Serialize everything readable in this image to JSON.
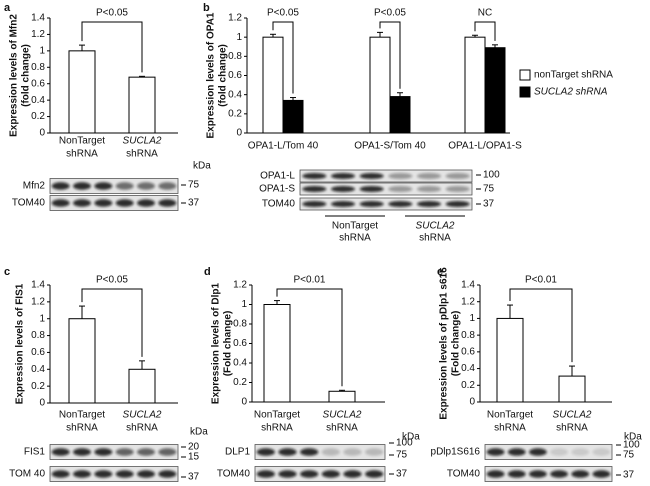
{
  "chart_data": [
    {
      "panel": "a",
      "type": "bar",
      "ylabel": [
        "Expression levels of Mfn2",
        "(fold change)"
      ],
      "ylim": [
        0,
        1.4
      ],
      "yticks": [
        0,
        0.2,
        0.4,
        0.6,
        0.8,
        1,
        1.2,
        1.4
      ],
      "categories": [
        [
          "NonTarget",
          "shRNA"
        ],
        [
          "SUCLA2",
          "shRNA"
        ]
      ],
      "series": [
        {
          "color": "#ffffff",
          "values": [
            1.0,
            0.68
          ],
          "errors": [
            0.07,
            0.01
          ]
        }
      ],
      "annotations": [
        "P<0.05"
      ],
      "blot": {
        "proteins": [
          "Mfn2",
          "TOM40"
        ],
        "kda": "kDa",
        "markers": [
          75,
          37
        ]
      }
    },
    {
      "panel": "b",
      "type": "bar",
      "ylabel": [
        "Expression levels of OPA1",
        "(fold change)"
      ],
      "ylim": [
        0,
        1.2
      ],
      "yticks": [
        0,
        0.2,
        0.4,
        0.6,
        0.8,
        1,
        1.2
      ],
      "categories": [
        "OPA1-L/Tom 40",
        "OPA1-S/Tom 40",
        "OPA1-L/OPA1-S"
      ],
      "series": [
        {
          "name": "nonTarget shRNA",
          "color": "#ffffff",
          "values": [
            1.0,
            1.0,
            1.0
          ],
          "errors": [
            0.03,
            0.05,
            0.02
          ]
        },
        {
          "name": "SUCLA2 shRNA",
          "color": "#000000",
          "values": [
            0.34,
            0.38,
            0.89
          ],
          "errors": [
            0.03,
            0.04,
            0.03
          ]
        }
      ],
      "annotations": [
        "P<0.05",
        "P<0.05",
        "NC"
      ],
      "blot": {
        "proteins": [
          "OPA1-L",
          "OPA1-S",
          "TOM40"
        ],
        "markers": [
          100,
          75,
          37
        ],
        "groups": [
          [
            "NonTarget",
            "shRNA"
          ],
          [
            "SUCLA2",
            "shRNA"
          ]
        ]
      }
    },
    {
      "panel": "c",
      "type": "bar",
      "ylabel": [
        "Expression levels of FIS1"
      ],
      "ylim": [
        0,
        1.4
      ],
      "yticks": [
        0,
        0.2,
        0.4,
        0.6,
        0.8,
        1,
        1.2,
        1.4
      ],
      "categories": [
        [
          "NonTarget",
          "shRNA"
        ],
        [
          "SUCLA2",
          "shRNA"
        ]
      ],
      "series": [
        {
          "color": "#ffffff",
          "values": [
            1.0,
            0.4
          ],
          "errors": [
            0.15,
            0.1
          ]
        }
      ],
      "annotations": [
        "P<0.05"
      ],
      "blot": {
        "proteins": [
          "FIS1",
          "TOM 40"
        ],
        "kda": "kDa",
        "markers": [
          20,
          15,
          37
        ]
      }
    },
    {
      "panel": "d",
      "type": "bar",
      "ylabel": [
        "Expression levels of Dlp1",
        "(Fold change)"
      ],
      "ylim": [
        0,
        1.2
      ],
      "yticks": [
        0,
        0.2,
        0.4,
        0.6,
        0.8,
        1,
        1.2
      ],
      "categories": [
        [
          "NonTarget",
          "shRNA"
        ],
        [
          "SUCLA2",
          "shRNA"
        ]
      ],
      "series": [
        {
          "color": "#ffffff",
          "values": [
            1.0,
            0.11
          ],
          "errors": [
            0.04,
            0.01
          ]
        }
      ],
      "annotations": [
        "P<0.01"
      ],
      "blot": {
        "proteins": [
          "DLP1",
          "TOM40"
        ],
        "kda": "kDa",
        "markers": [
          100,
          75,
          37
        ]
      }
    },
    {
      "panel": "e",
      "type": "bar",
      "ylabel": [
        "Expression levels of pDlp1 s616",
        "(Fold change)"
      ],
      "ylim": [
        0,
        1.4
      ],
      "yticks": [
        0,
        0.2,
        0.4,
        0.6,
        0.8,
        1,
        1.2,
        1.4
      ],
      "categories": [
        [
          "NonTarget",
          "shRNA"
        ],
        [
          "SUCLA2",
          "shRNA"
        ]
      ],
      "series": [
        {
          "color": "#ffffff",
          "values": [
            1.0,
            0.31
          ],
          "errors": [
            0.16,
            0.12
          ]
        }
      ],
      "annotations": [
        "P<0.01"
      ],
      "blot": {
        "proteins": [
          "pDlp1S616",
          "TOM40"
        ],
        "kda": "kDa",
        "markers": [
          100,
          75,
          37
        ]
      }
    }
  ]
}
